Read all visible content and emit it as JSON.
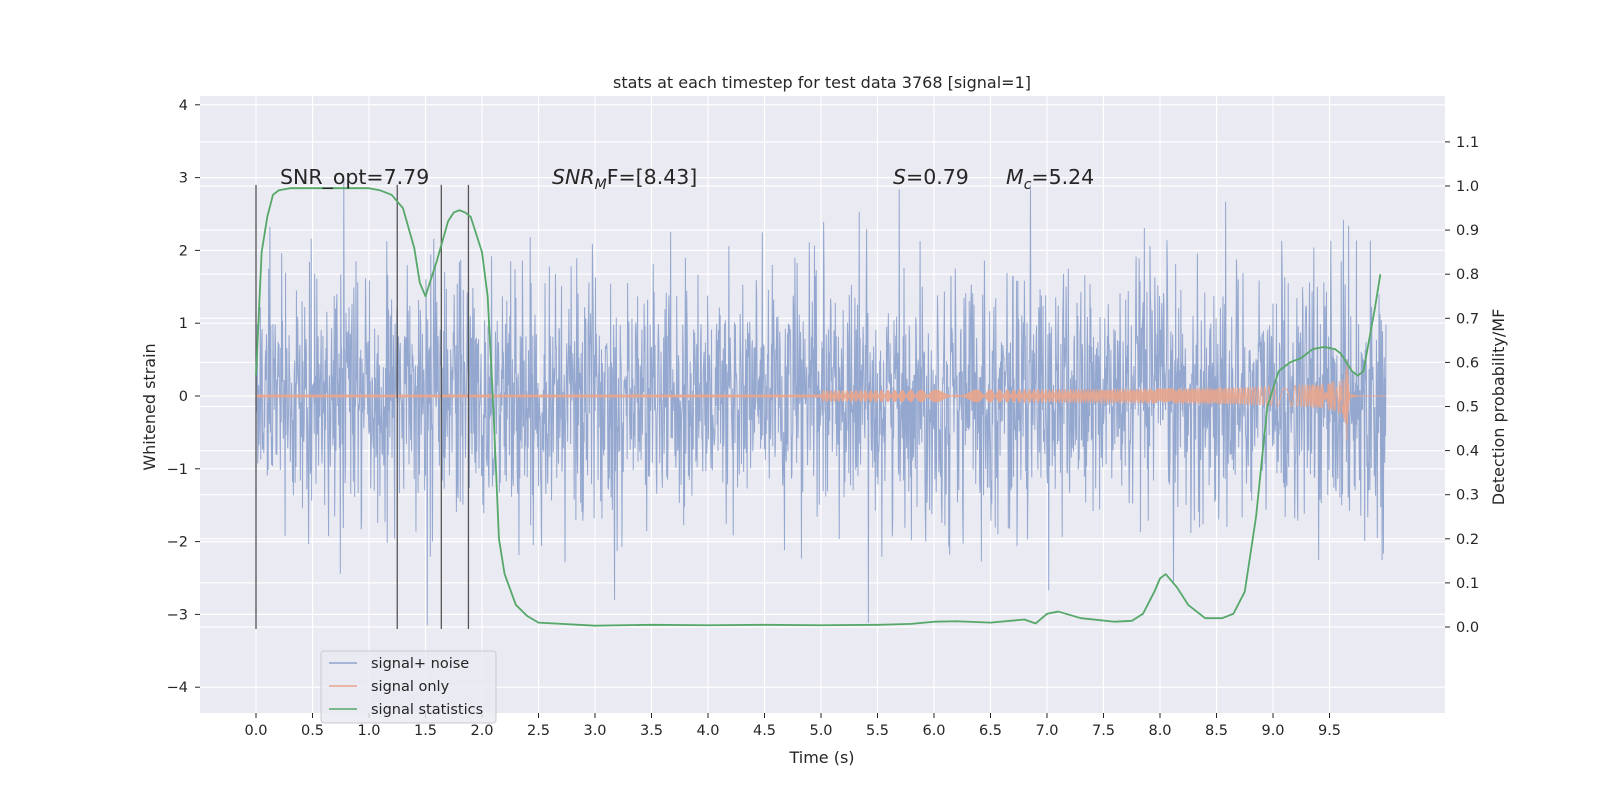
{
  "chart_data": {
    "type": "line",
    "title": "stats at each timestep for test data 3768 [signal=1]",
    "xlabel": "Time (s)",
    "ylabel_left": "Whitened strain",
    "ylabel_right": "Detection probability/MF",
    "xlim": [
      -0.5,
      10.5
    ],
    "ylim_left": [
      -4.4,
      4.1
    ],
    "ylim_right": [
      -0.2,
      1.2
    ],
    "x_ticks": [
      "0.0",
      "0.5",
      "1.0",
      "1.5",
      "2.0",
      "2.5",
      "3.0",
      "3.5",
      "4.0",
      "4.5",
      "5.0",
      "5.5",
      "6.0",
      "6.5",
      "7.0",
      "7.5",
      "8.0",
      "8.5",
      "9.0",
      "9.5"
    ],
    "y_ticks_left": [
      "−4",
      "−3",
      "−2",
      "−1",
      "0",
      "1",
      "2",
      "3",
      "4"
    ],
    "y_ticks_right": [
      "0.0",
      "0.1",
      "0.2",
      "0.3",
      "0.4",
      "0.5",
      "0.6",
      "0.7",
      "0.8",
      "0.9",
      "1.0",
      "1.1"
    ],
    "grid": true,
    "legend_position": "lower-left",
    "annotations": {
      "snr_opt": "SNR_opt=7.79",
      "snr_mf_italic": "SNR",
      "snr_mf_sub": "M",
      "snr_mf_rest": "F=[8.43]",
      "s_italic": "S",
      "s_rest": "=0.79",
      "mc_italic": "M",
      "mc_sub": "c",
      "mc_rest": "=5.24"
    },
    "vertical_markers_x": [
      0.0,
      1.25,
      1.64,
      1.88
    ],
    "vertical_markers_ylim": [
      -3.2,
      2.9
    ],
    "series": [
      {
        "name": "signal+ noise",
        "color": "#8fa3cc",
        "axis": "left",
        "x_range": [
          0.0,
          10.0
        ],
        "envelope_approx": [
          -2.3,
          2.3
        ]
      },
      {
        "name": "signal only",
        "color": "#e8a58c",
        "axis": "left",
        "chirp": {
          "start_amplitude": 0.02,
          "peak_amplitude": 0.75,
          "merger_time": 9.65,
          "end_time": 10.0
        }
      },
      {
        "name": "signal statistics",
        "color": "#55a868",
        "axis": "right",
        "x": [
          0.0,
          0.05,
          0.1,
          0.15,
          0.2,
          0.3,
          0.5,
          0.8,
          1.0,
          1.1,
          1.2,
          1.3,
          1.4,
          1.45,
          1.5,
          1.6,
          1.7,
          1.75,
          1.8,
          1.85,
          1.9,
          2.0,
          2.05,
          2.1,
          2.15,
          2.2,
          2.3,
          2.4,
          2.5,
          3.0,
          3.5,
          4.0,
          4.5,
          5.0,
          5.5,
          5.8,
          6.0,
          6.2,
          6.5,
          6.8,
          6.9,
          7.0,
          7.1,
          7.3,
          7.6,
          7.75,
          7.85,
          7.95,
          8.0,
          8.05,
          8.15,
          8.25,
          8.4,
          8.55,
          8.65,
          8.75,
          8.85,
          8.95,
          9.05,
          9.15,
          9.25,
          9.35,
          9.45,
          9.55,
          9.6,
          9.65,
          9.7,
          9.75,
          9.8,
          9.85,
          9.9,
          9.95
        ],
        "y": [
          0.57,
          0.85,
          0.93,
          0.98,
          0.99,
          0.995,
          0.995,
          0.995,
          0.995,
          0.99,
          0.98,
          0.95,
          0.86,
          0.78,
          0.75,
          0.83,
          0.92,
          0.94,
          0.945,
          0.94,
          0.93,
          0.85,
          0.75,
          0.5,
          0.2,
          0.12,
          0.05,
          0.025,
          0.01,
          0.003,
          0.005,
          0.004,
          0.005,
          0.004,
          0.005,
          0.007,
          0.012,
          0.013,
          0.01,
          0.017,
          0.008,
          0.03,
          0.035,
          0.02,
          0.012,
          0.014,
          0.03,
          0.08,
          0.11,
          0.12,
          0.09,
          0.05,
          0.02,
          0.02,
          0.03,
          0.08,
          0.25,
          0.5,
          0.58,
          0.6,
          0.61,
          0.63,
          0.635,
          0.63,
          0.62,
          0.6,
          0.58,
          0.57,
          0.58,
          0.65,
          0.72,
          0.8
        ]
      }
    ]
  }
}
